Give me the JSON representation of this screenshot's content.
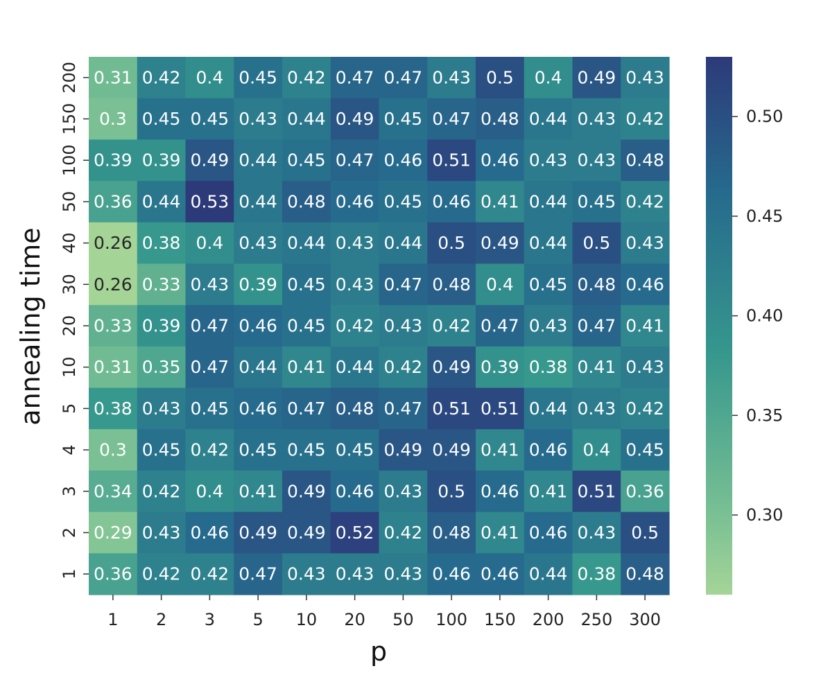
{
  "chart_data": {
    "type": "heatmap",
    "xlabel": "p",
    "ylabel": "annealing time",
    "x_categories": [
      "1",
      "2",
      "3",
      "5",
      "10",
      "20",
      "50",
      "100",
      "150",
      "200",
      "250",
      "300"
    ],
    "y_categories": [
      "200",
      "150",
      "100",
      "50",
      "40",
      "30",
      "20",
      "10",
      "5",
      "4",
      "3",
      "2",
      "1"
    ],
    "values": [
      [
        "0.31",
        "0.42",
        "0.4",
        "0.45",
        "0.42",
        "0.47",
        "0.47",
        "0.43",
        "0.5",
        "0.4",
        "0.49",
        "0.43"
      ],
      [
        "0.3",
        "0.45",
        "0.45",
        "0.43",
        "0.44",
        "0.49",
        "0.45",
        "0.47",
        "0.48",
        "0.44",
        "0.43",
        "0.42"
      ],
      [
        "0.39",
        "0.39",
        "0.49",
        "0.44",
        "0.45",
        "0.47",
        "0.46",
        "0.51",
        "0.46",
        "0.43",
        "0.43",
        "0.48"
      ],
      [
        "0.36",
        "0.44",
        "0.53",
        "0.44",
        "0.48",
        "0.46",
        "0.45",
        "0.46",
        "0.41",
        "0.44",
        "0.45",
        "0.42"
      ],
      [
        "0.26",
        "0.38",
        "0.4",
        "0.43",
        "0.44",
        "0.43",
        "0.44",
        "0.5",
        "0.49",
        "0.44",
        "0.5",
        "0.43"
      ],
      [
        "0.26",
        "0.33",
        "0.43",
        "0.39",
        "0.45",
        "0.43",
        "0.47",
        "0.48",
        "0.4",
        "0.45",
        "0.48",
        "0.46"
      ],
      [
        "0.33",
        "0.39",
        "0.47",
        "0.46",
        "0.45",
        "0.42",
        "0.43",
        "0.42",
        "0.47",
        "0.43",
        "0.47",
        "0.41"
      ],
      [
        "0.31",
        "0.35",
        "0.47",
        "0.44",
        "0.41",
        "0.44",
        "0.42",
        "0.49",
        "0.39",
        "0.38",
        "0.41",
        "0.43"
      ],
      [
        "0.38",
        "0.43",
        "0.45",
        "0.46",
        "0.47",
        "0.48",
        "0.47",
        "0.51",
        "0.51",
        "0.44",
        "0.43",
        "0.42"
      ],
      [
        "0.3",
        "0.45",
        "0.42",
        "0.45",
        "0.45",
        "0.45",
        "0.49",
        "0.49",
        "0.41",
        "0.46",
        "0.4",
        "0.45"
      ],
      [
        "0.34",
        "0.42",
        "0.4",
        "0.41",
        "0.49",
        "0.46",
        "0.43",
        "0.5",
        "0.46",
        "0.41",
        "0.51",
        "0.36"
      ],
      [
        "0.29",
        "0.43",
        "0.46",
        "0.49",
        "0.49",
        "0.52",
        "0.42",
        "0.48",
        "0.41",
        "0.46",
        "0.43",
        "0.5"
      ],
      [
        "0.36",
        "0.42",
        "0.42",
        "0.47",
        "0.43",
        "0.43",
        "0.43",
        "0.46",
        "0.46",
        "0.44",
        "0.38",
        "0.48"
      ]
    ],
    "colorbar": {
      "range": [
        0.26,
        0.53
      ],
      "ticks": [
        "0.30",
        "0.35",
        "0.40",
        "0.45",
        "0.50"
      ],
      "colormap": "crest",
      "colors_low_to_high": [
        "#a5d497",
        "#36978d",
        "#2d3a7a"
      ]
    },
    "grid": false,
    "legend": "colorbar-right"
  }
}
